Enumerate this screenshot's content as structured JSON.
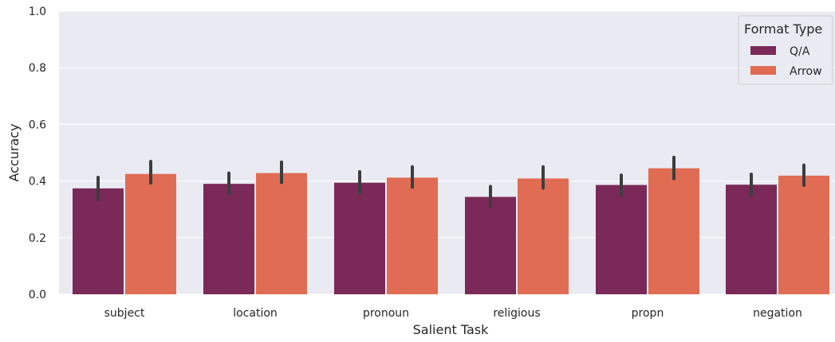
{
  "chart_data": {
    "type": "bar",
    "title": "",
    "xlabel": "Salient Task",
    "ylabel": "Accuracy",
    "ylim": [
      0,
      1.0
    ],
    "yticks": [
      "0.0",
      "0.2",
      "0.4",
      "0.6",
      "0.8",
      "1.0"
    ],
    "grid": true,
    "legend": {
      "title": "Format Type",
      "placement": "top-right"
    },
    "categories": [
      "subject",
      "location",
      "pronoun",
      "religious",
      "propn",
      "negation"
    ],
    "series": [
      {
        "name": "Q/A",
        "color": "#7a2958",
        "values": [
          0.374,
          0.39,
          0.394,
          0.344,
          0.386,
          0.387
        ],
        "ci_low": [
          0.335,
          0.355,
          0.358,
          0.31,
          0.35,
          0.35
        ],
        "ci_high": [
          0.413,
          0.428,
          0.433,
          0.381,
          0.421,
          0.424
        ]
      },
      {
        "name": "Arrow",
        "color": "#e06c53",
        "values": [
          0.425,
          0.428,
          0.412,
          0.409,
          0.445,
          0.419
        ],
        "ci_low": [
          0.393,
          0.395,
          0.378,
          0.375,
          0.408,
          0.385
        ],
        "ci_high": [
          0.469,
          0.467,
          0.45,
          0.45,
          0.484,
          0.456
        ]
      }
    ]
  }
}
